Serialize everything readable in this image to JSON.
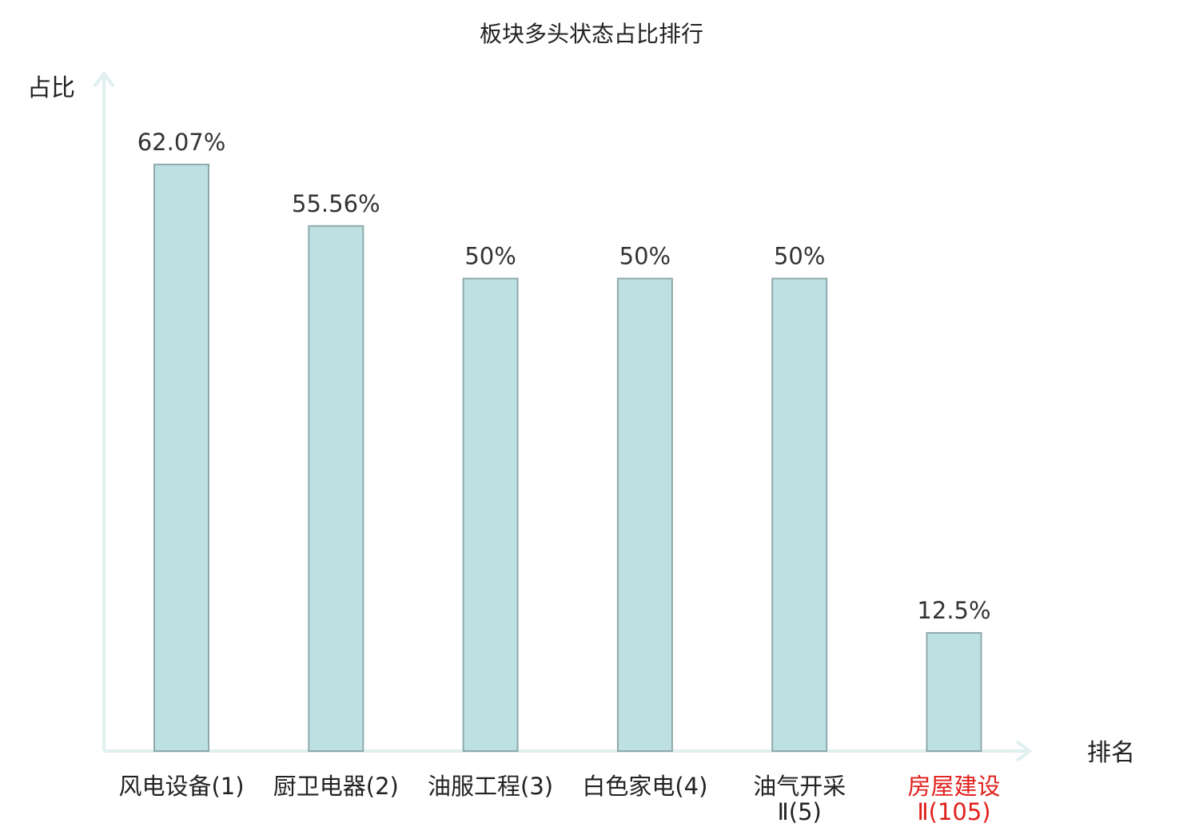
{
  "chart_data": {
    "type": "bar",
    "title": "板块多头状态占比排行",
    "ylabel": "占比",
    "xlabel": "排名",
    "ylim": [
      0,
      70
    ],
    "grid": false,
    "legend": "none",
    "categories": [
      {
        "name": "风电设备",
        "rank": "(1)",
        "highlight": false
      },
      {
        "name": "厨卫电器",
        "rank": "(2)",
        "highlight": false
      },
      {
        "name": "油服工程",
        "rank": "(3)",
        "highlight": false
      },
      {
        "name": "白色家电",
        "rank": "(4)",
        "highlight": false
      },
      {
        "name": "油气开采",
        "rank": "Ⅱ(5)",
        "highlight": false
      },
      {
        "name": "房屋建设",
        "rank": "Ⅱ(105)",
        "highlight": true
      }
    ],
    "values": [
      62.07,
      55.56,
      50,
      50,
      50,
      12.5
    ],
    "value_labels": [
      "62.07%",
      "55.56%",
      "50%",
      "50%",
      "50%",
      "12.5%"
    ],
    "colors": {
      "bar_fill": "#bde0e3",
      "bar_stroke": "#8fa9ab",
      "axis": "#dff0ee",
      "text": "#222222",
      "highlight_text": "#e0201c"
    }
  }
}
